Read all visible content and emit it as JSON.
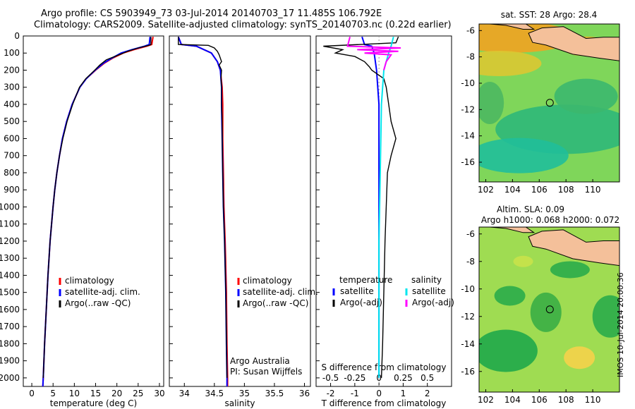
{
  "header": {
    "line1": "Argo profile: CS 5903949_73 03-Jul-2014 20140703_17 11.485S 106.792E",
    "line2": "Climatology: CARS2009. Satellite-adjusted climatology: synTS_20140703.nc (0.22d earlier)"
  },
  "footer_stamp": "IMOS 10-Jul-2014 20:00:36",
  "colors": {
    "climatology": "#ff0000",
    "satellite": "#0000ff",
    "argo": "#000000",
    "sal_satellite": "#00e5ee",
    "sal_argo": "#ff00ff",
    "land": "#f4c09a"
  },
  "chart_data": [
    {
      "type": "line",
      "panel": "temperature",
      "xlabel": "temperature (deg C)",
      "ylabel": "",
      "xlim": [
        -2,
        31
      ],
      "ylim": [
        0,
        2050
      ],
      "y_inverted": true,
      "xticks": [
        0,
        5,
        10,
        15,
        20,
        25,
        30
      ],
      "yticks": [
        0,
        100,
        200,
        300,
        400,
        500,
        600,
        700,
        800,
        900,
        1000,
        1100,
        1200,
        1300,
        1400,
        1500,
        1600,
        1700,
        1800,
        1900,
        2000
      ],
      "legend": [
        "climatology",
        "satellite-adj. clim.",
        "Argo(..raw -QC)"
      ],
      "series": [
        {
          "name": "climatology",
          "y": [
            5,
            50,
            60,
            80,
            100,
            130,
            160,
            200,
            250,
            300,
            400,
            500,
            600,
            700,
            800,
            900,
            1000,
            1200,
            1400,
            1600,
            1800,
            2000,
            2050
          ],
          "x": [
            28.5,
            28.2,
            27,
            24,
            21.5,
            19,
            17,
            15,
            12.8,
            11.3,
            9.5,
            8.2,
            7.2,
            6.5,
            5.9,
            5.4,
            5.0,
            4.3,
            3.8,
            3.4,
            3.0,
            2.7,
            2.6
          ]
        },
        {
          "name": "satellite-adj. clim.",
          "y": [
            5,
            50,
            60,
            80,
            100,
            130,
            160,
            200,
            250,
            300,
            400,
            500,
            600,
            700,
            800,
            900,
            1000,
            1200,
            1400,
            1600,
            1800,
            2000,
            2050
          ],
          "x": [
            27.8,
            27.6,
            26.5,
            23.5,
            21,
            18.8,
            16.8,
            14.9,
            12.8,
            11.3,
            9.5,
            8.2,
            7.2,
            6.5,
            5.9,
            5.4,
            5.0,
            4.3,
            3.8,
            3.4,
            3.0,
            2.7,
            2.6
          ]
        },
        {
          "name": "Argo(..raw -QC)",
          "y": [
            5,
            50,
            55,
            70,
            90,
            110,
            140,
            170,
            200,
            250,
            300,
            400,
            500,
            600,
            700,
            800,
            900,
            1000,
            1200,
            1400,
            1600,
            1800,
            2000
          ],
          "x": [
            28.0,
            28.0,
            27.5,
            25,
            22.5,
            20.5,
            17.5,
            16,
            14.8,
            12.7,
            11.2,
            9.6,
            8.3,
            7.3,
            6.5,
            5.9,
            5.4,
            5.0,
            4.3,
            3.8,
            3.4,
            3.0,
            2.7
          ]
        }
      ],
      "annotations": []
    },
    {
      "type": "line",
      "panel": "salinity",
      "xlabel": "salinity",
      "ylabel": "",
      "xlim": [
        33.75,
        36.1
      ],
      "ylim": [
        0,
        2050
      ],
      "y_inverted": true,
      "xticks": [
        34,
        34.5,
        35,
        35.5,
        36
      ],
      "legend": [
        "climatology",
        "satellite-adj. clim.",
        "Argo(..raw -QC)"
      ],
      "series": [
        {
          "name": "climatology",
          "y": [
            5,
            50,
            60,
            100,
            150,
            200,
            300,
            400,
            600,
            800,
            1000,
            1200,
            1500,
            1800,
            2000,
            2050
          ],
          "x": [
            33.9,
            33.95,
            34.2,
            34.45,
            34.55,
            34.6,
            34.63,
            34.64,
            34.64,
            34.65,
            34.66,
            34.68,
            34.7,
            34.71,
            34.72,
            34.72
          ]
        },
        {
          "name": "satellite-adj. clim.",
          "y": [
            5,
            50,
            60,
            100,
            150,
            200,
            300,
            400,
            600,
            800,
            1000,
            1200,
            1500,
            1800,
            2000,
            2050
          ],
          "x": [
            33.9,
            33.95,
            34.2,
            34.45,
            34.55,
            34.6,
            34.62,
            34.62,
            34.63,
            34.64,
            34.65,
            34.67,
            34.69,
            34.7,
            34.71,
            34.71
          ]
        },
        {
          "name": "Argo(..raw -QC)",
          "y": [
            5,
            50,
            55,
            70,
            90,
            110,
            130,
            150,
            170,
            200,
            250,
            300,
            400,
            500,
            600,
            800,
            1000,
            1200,
            1500,
            1800,
            2000
          ],
          "x": [
            33.9,
            33.9,
            34.4,
            34.5,
            34.55,
            34.58,
            34.6,
            34.62,
            34.58,
            34.62,
            34.61,
            34.62,
            34.62,
            34.63,
            34.63,
            34.64,
            34.65,
            34.67,
            34.69,
            34.7,
            34.71
          ]
        }
      ],
      "annotations": [
        "Argo Australia",
        "PI: Susan Wijffels"
      ]
    },
    {
      "type": "line",
      "panel": "difference",
      "xlabel": "T difference from climatology",
      "xlabel_top": "S difference from climatology",
      "xlim": [
        -2.6,
        3.0
      ],
      "ylim": [
        0,
        2050
      ],
      "y_inverted": true,
      "xticks": [
        -2,
        -1,
        0,
        1,
        2
      ],
      "s_xticks": [
        {
          "label": "-0.5",
          "x": -2
        },
        {
          "label": "-0.25",
          "x": -1
        },
        {
          "label": "0",
          "x": 0
        },
        {
          "label": "0.25",
          "x": 1
        },
        {
          "label": "0.5",
          "x": 2
        }
      ],
      "legend_titles": [
        "temperature",
        "salinity"
      ],
      "legend": [
        "satellite",
        "Argo(-adj)",
        "satellite",
        "Argo(-adj)"
      ],
      "series": [
        {
          "name": "satellite",
          "var": "temperature",
          "y": [
            5,
            50,
            60,
            100,
            200,
            400,
            800,
            1200,
            1600,
            2000
          ],
          "x": [
            -0.7,
            -0.6,
            -0.3,
            -0.2,
            -0.1,
            0,
            0,
            0,
            0,
            0
          ]
        },
        {
          "name": "Argo(-adj)",
          "var": "temperature",
          "y": [
            5,
            40,
            60,
            80,
            100,
            120,
            150,
            180,
            200,
            250,
            300,
            400,
            500,
            600,
            700,
            800,
            1000,
            1200,
            1500,
            1800,
            2000
          ],
          "x": [
            0.8,
            0.7,
            -2.3,
            -1.5,
            -1.8,
            -1.0,
            -0.6,
            -0.4,
            -0.3,
            0.2,
            0.3,
            0.4,
            0.5,
            0.7,
            0.5,
            0.35,
            0.3,
            0.25,
            0.2,
            0.15,
            0.1
          ]
        },
        {
          "name": "satellite",
          "var": "salinity",
          "y": [
            5,
            60,
            100,
            200,
            400,
            800,
            1200,
            1600,
            2000
          ],
          "x": [
            0.6,
            0.5,
            0.4,
            0.2,
            0.1,
            0.05,
            0,
            0,
            0
          ]
        },
        {
          "name": "Argo(-adj)",
          "var": "salinity",
          "y": [
            5,
            60,
            70,
            80,
            90,
            100,
            110,
            150,
            200
          ],
          "x": [
            -1.2,
            -1.3,
            0.9,
            -0.9,
            0.8,
            -0.6,
            0.5,
            0.3,
            0.2
          ]
        }
      ]
    },
    {
      "type": "heatmap",
      "panel": "sst-map",
      "title": "sat. SST: 28 Argo: 28.4",
      "xlim": [
        101.5,
        112
      ],
      "ylim": [
        -17.5,
        -5.5
      ],
      "xticks": [
        102,
        104,
        106,
        108,
        110
      ],
      "yticks": [
        -6,
        -8,
        -10,
        -12,
        -14,
        -16
      ],
      "marker": {
        "lon": 106.792,
        "lat": -11.485
      }
    },
    {
      "type": "heatmap",
      "panel": "sla-map",
      "title": "Altim. SLA: 0.09",
      "subtitle": "Argo h1000: 0.068 h2000: 0.072",
      "xlim": [
        101.5,
        112
      ],
      "ylim": [
        -17.5,
        -5.5
      ],
      "xticks": [
        102,
        104,
        106,
        108,
        110
      ],
      "yticks": [
        -6,
        -8,
        -10,
        -12,
        -14,
        -16
      ],
      "marker": {
        "lon": 106.792,
        "lat": -11.485
      }
    }
  ]
}
